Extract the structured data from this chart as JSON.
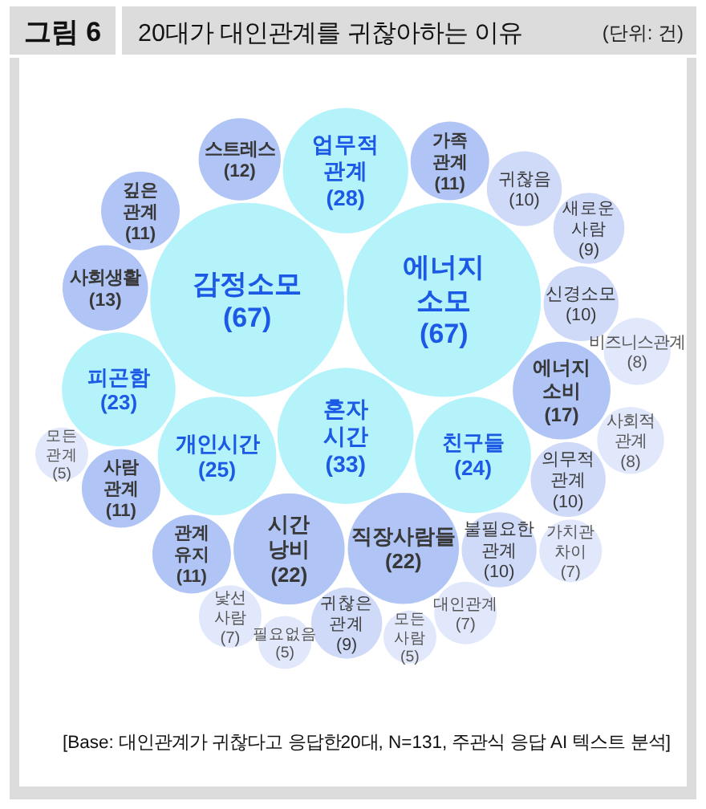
{
  "chart_data": {
    "type": "other",
    "title": "20대가 대인관계를 귀찮아하는 이유",
    "categories": [
      "감정소모",
      "에너지 소모",
      "혼자 시간",
      "업무적 관계",
      "개인시간",
      "친구들",
      "피곤함",
      "시간 낭비",
      "직장사람들",
      "에너지 소비",
      "사회생활",
      "스트레스",
      "깊은 관계",
      "사람 관계",
      "관계 유지",
      "가족 관계",
      "신경소모",
      "귀찮음",
      "의무적 관계",
      "불필요한 관계",
      "새로운 사람",
      "귀찮은 관계",
      "비즈니스관계",
      "사회적 관계",
      "대인관계",
      "가치관 차이",
      "낯선 사람",
      "모든 사람",
      "필요없음",
      "모든 관계"
    ],
    "values": [
      67,
      67,
      33,
      28,
      25,
      24,
      23,
      22,
      22,
      17,
      13,
      12,
      11,
      11,
      11,
      11,
      10,
      10,
      10,
      10,
      9,
      9,
      8,
      8,
      7,
      7,
      7,
      5,
      5,
      5
    ],
    "value_labels": [
      "(67)",
      "(67)",
      "(33)",
      "(28)",
      "(25)",
      "(24)",
      "(23)",
      "(22)",
      "(22)",
      "(17)",
      "(13)",
      "(12)",
      "(11)",
      "(11)",
      "(11)",
      "(11)",
      "(10)",
      "(10)",
      "(10)",
      "(10)",
      "(9)",
      "(9)",
      "(8)",
      "(8)",
      "(7)",
      "(7)",
      "(7)",
      "(5)",
      "(5)",
      "(5)"
    ],
    "colors": [
      "#b5f3fb",
      "#b5f3fb",
      "#b5f3fb",
      "#b5f3fb",
      "#b5f3fb",
      "#b5f3fb",
      "#b5f3fb",
      "#b0c5f5",
      "#b0c5f5",
      "#b0c5f5",
      "#b0c5f5",
      "#b0c5f5",
      "#b0c5f5",
      "#b0c5f5",
      "#b0c5f5",
      "#b0c5f5",
      "#cfdaf8",
      "#cfdaf8",
      "#cfdaf8",
      "#cfdaf8",
      "#cfdaf8",
      "#cfdaf8",
      "#e1e8fb",
      "#e1e8fb",
      "#e1e8fb",
      "#e1e8fb",
      "#e1e8fb",
      "#e1e8fb",
      "#e1e8fb",
      "#e1e8fb"
    ],
    "annotations": [
      "그림 6",
      "(단위: 건)",
      "[Base: 대인관계가 귀찮다고 응답한20대, N=131, 주관식 응답 AI 텍스트 분석]"
    ]
  }
}
